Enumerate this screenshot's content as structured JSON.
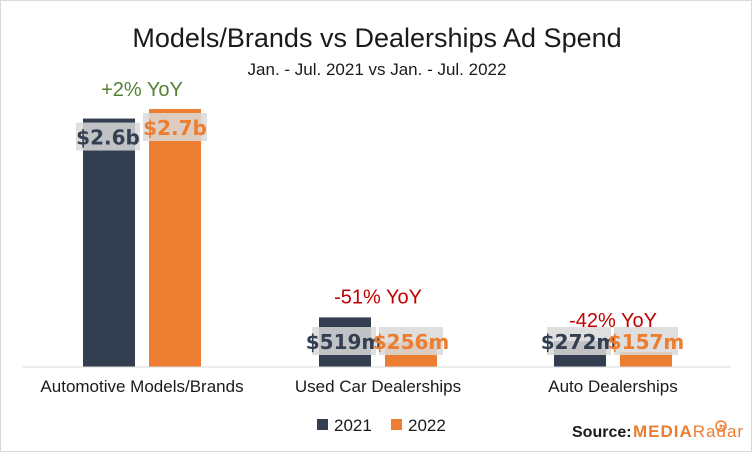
{
  "chart_data": {
    "type": "bar",
    "title": "Models/Brands  vs Dealerships Ad Spend",
    "subtitle": "Jan. - Jul. 2021 vs Jan. - Jul. 2022",
    "categories": [
      "Automotive Models/Brands",
      "Used Car Dealerships",
      "Auto Dealerships"
    ],
    "series": [
      {
        "name": "2021",
        "color": "#333f50",
        "values": [
          2600,
          519,
          272
        ],
        "labels": [
          "$2.6b",
          "$519m",
          "$272m"
        ]
      },
      {
        "name": "2022",
        "color": "#ed7d31",
        "values": [
          2700,
          256,
          157
        ],
        "labels": [
          "$2.7b",
          "$256m",
          "$157m"
        ]
      }
    ],
    "units": "millions USD",
    "ylim": [
      0,
      2700
    ],
    "yoy": [
      {
        "text": "+2% YoY",
        "color": "#548235"
      },
      {
        "text": "-51% YoY",
        "color": "#c00000"
      },
      {
        "text": "-42% YoY",
        "color": "#c00000"
      }
    ],
    "legend": [
      "2021",
      "2022"
    ],
    "legend_position": "bottom",
    "grid": false
  },
  "source": {
    "label": "Source:",
    "brand_part1": "MEDIA",
    "brand_part2": "Radar",
    "brand_color1": "#ed7d31",
    "brand_color2": "#ed7d31"
  }
}
